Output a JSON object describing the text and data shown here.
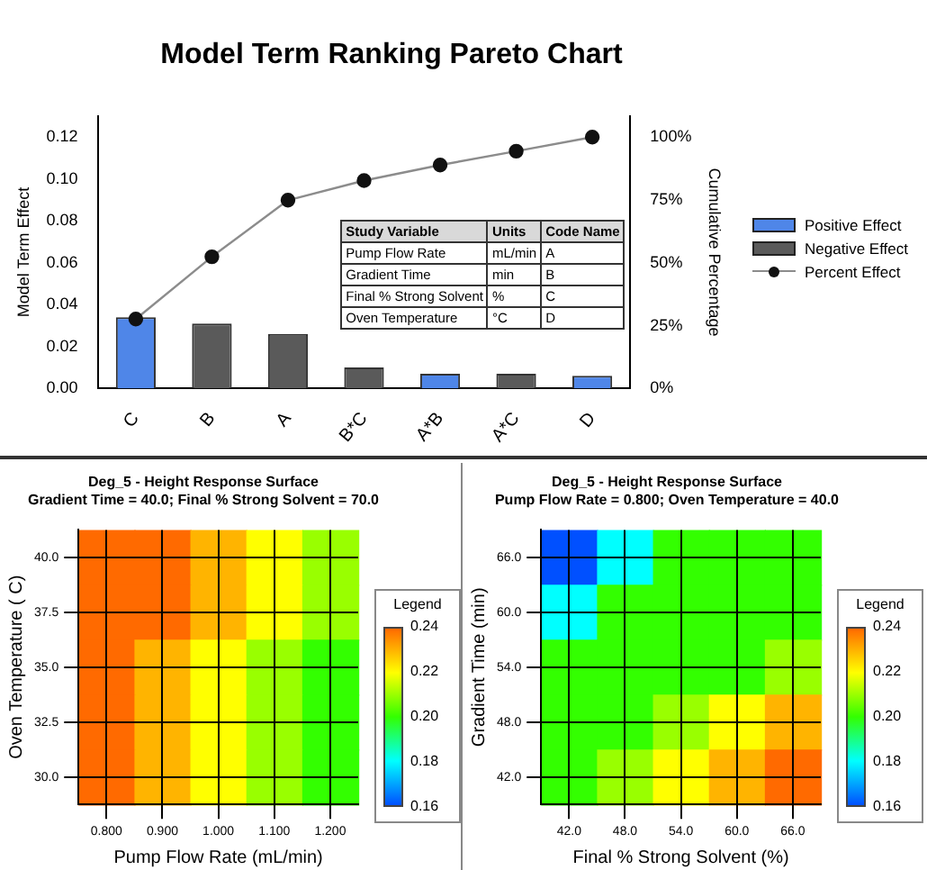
{
  "chart_data": [
    {
      "type": "bar",
      "title": "Model Term Ranking Pareto Chart",
      "categories": [
        "C",
        "B",
        "A",
        "B*C",
        "A*B",
        "A*C",
        "D"
      ],
      "stacked": true,
      "ylabel": "Model Term Effect",
      "y2label": "Cumulative Percentage",
      "ylim": [
        0,
        0.13
      ],
      "yticks": [
        {
          "value": 0,
          "label": "0.00"
        },
        {
          "value": 0.02,
          "label": "0.02"
        },
        {
          "value": 0.04,
          "label": "0.04"
        },
        {
          "value": 0.06,
          "label": "0.06"
        },
        {
          "value": 0.08,
          "label": "0.08"
        },
        {
          "value": 0.1,
          "label": "0.10"
        },
        {
          "value": 0.12,
          "label": "0.12"
        }
      ],
      "y2lim": [
        0,
        108.4
      ],
      "y2ticks": [
        {
          "value": 0,
          "label": "0%"
        },
        {
          "value": 25,
          "label": "25%"
        },
        {
          "value": 50,
          "label": "50%"
        },
        {
          "value": 75,
          "label": "75%"
        },
        {
          "value": 100,
          "label": "100%"
        }
      ],
      "legend": "right",
      "marker": "circle",
      "series": [
        {
          "name": "Positive Effect",
          "color": "#4f86e8",
          "values": [
            0.034,
            null,
            null,
            null,
            0.007,
            null,
            0.006
          ]
        },
        {
          "name": "Negative Effect",
          "color": "#5a5a5a",
          "values": [
            null,
            0.031,
            0.026,
            0.01,
            null,
            0.007,
            null
          ]
        },
        {
          "name": "Percent Effect",
          "type": "line",
          "axis": "y2",
          "color": "#8c8c8c",
          "values": [
            27.6,
            52.4,
            74.9,
            82.7,
            88.9,
            94.4,
            100
          ]
        }
      ],
      "annotations": [
        "Study Variable",
        "Units",
        "Code Name",
        "Pump Flow Rate",
        "mL/min",
        "A",
        "Gradient Time",
        "min",
        "B",
        "Final % Strong Solvent",
        "%",
        "C",
        "Oven Temperature",
        "°C",
        "D"
      ]
    },
    {
      "type": "heatmap",
      "title": "Deg_5 - Height Response Surface",
      "subtitle": "Gradient Time = 40.0; Final % Strong Solvent = 70.0",
      "xlabel": "Pump Flow Rate (mL/min)",
      "ylabel": "Oven Temperature ( C)",
      "legend_title": "Legend",
      "grid": true,
      "categories": [
        "0.800",
        "0.900",
        "1.000",
        "1.100",
        "1.200"
      ],
      "y_categories": [
        "40.0",
        "37.5",
        "35.0",
        "32.5",
        "30.0"
      ],
      "clim": [
        0.16,
        0.24
      ],
      "cticks": [
        {
          "value": 0.16,
          "label": "0.16"
        },
        {
          "value": 0.18,
          "label": "0.18"
        },
        {
          "value": 0.2,
          "label": "0.20"
        },
        {
          "value": 0.22,
          "label": "0.22"
        },
        {
          "value": 0.24,
          "label": "0.24"
        }
      ],
      "cells": [
        [
          0.24,
          0.24,
          0.23,
          0.22,
          0.21
        ],
        [
          0.24,
          0.24,
          0.23,
          0.22,
          0.21
        ],
        [
          0.24,
          0.23,
          0.22,
          0.21,
          0.2
        ],
        [
          0.24,
          0.23,
          0.22,
          0.21,
          0.2
        ],
        [
          0.24,
          0.23,
          0.22,
          0.21,
          0.2
        ]
      ]
    },
    {
      "type": "heatmap",
      "title": "Deg_5 - Height Response Surface",
      "subtitle": "Pump Flow Rate = 0.800; Oven Temperature = 40.0",
      "xlabel": "Final % Strong Solvent (%)",
      "ylabel": "Gradient Time (min)",
      "legend_title": "Legend",
      "grid": true,
      "categories": [
        "42.0",
        "48.0",
        "54.0",
        "60.0",
        "66.0"
      ],
      "y_categories": [
        "66.0",
        "60.0",
        "54.0",
        "48.0",
        "42.0"
      ],
      "clim": [
        0.16,
        0.24
      ],
      "cticks": [
        {
          "value": 0.16,
          "label": "0.16"
        },
        {
          "value": 0.18,
          "label": "0.18"
        },
        {
          "value": 0.2,
          "label": "0.20"
        },
        {
          "value": 0.22,
          "label": "0.22"
        },
        {
          "value": 0.24,
          "label": "0.24"
        }
      ],
      "cells": [
        [
          0.16,
          0.18,
          0.2,
          0.2,
          0.2
        ],
        [
          0.18,
          0.2,
          0.2,
          0.2,
          0.2
        ],
        [
          0.2,
          0.2,
          0.2,
          0.2,
          0.21
        ],
        [
          0.2,
          0.2,
          0.21,
          0.22,
          0.23
        ],
        [
          0.2,
          0.21,
          0.22,
          0.23,
          0.24
        ]
      ]
    }
  ]
}
